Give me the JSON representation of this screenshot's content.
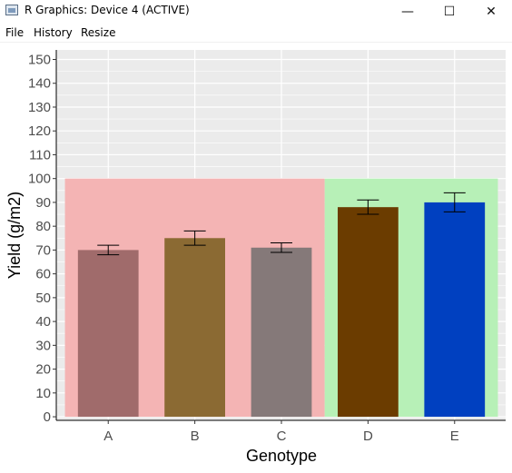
{
  "window": {
    "title": "R Graphics: Device 4 (ACTIVE)",
    "minimize_glyph": "—",
    "maximize_glyph": "☐",
    "close_glyph": "✕"
  },
  "menu": {
    "items": [
      "File",
      "History",
      "Resize"
    ]
  },
  "chart_data": {
    "type": "bar",
    "title": "",
    "xlabel": "Genotype",
    "ylabel": "Yield (g/m2)",
    "categories": [
      "A",
      "B",
      "C",
      "D",
      "E"
    ],
    "values": [
      70,
      75,
      71,
      88,
      90
    ],
    "error": [
      2,
      3,
      2,
      3,
      4
    ],
    "bar_colors": [
      "#a06b6b",
      "#8b6a33",
      "#857979",
      "#6b3c00",
      "#0040c0"
    ],
    "ylim": [
      -1.5,
      154
    ],
    "yticks": [
      0,
      10,
      20,
      30,
      40,
      50,
      60,
      70,
      80,
      90,
      100,
      110,
      120,
      130,
      140,
      150
    ],
    "grid": true,
    "background_regions": [
      {
        "from": "A",
        "to": "C",
        "ymin": 0,
        "ymax": 100,
        "color": "#f4b4b4"
      },
      {
        "from": "D",
        "to": "E",
        "ymin": 0,
        "ymax": 100,
        "color": "#b7f0b7"
      }
    ],
    "panel_color": "#ebebeb",
    "legend": "none"
  }
}
